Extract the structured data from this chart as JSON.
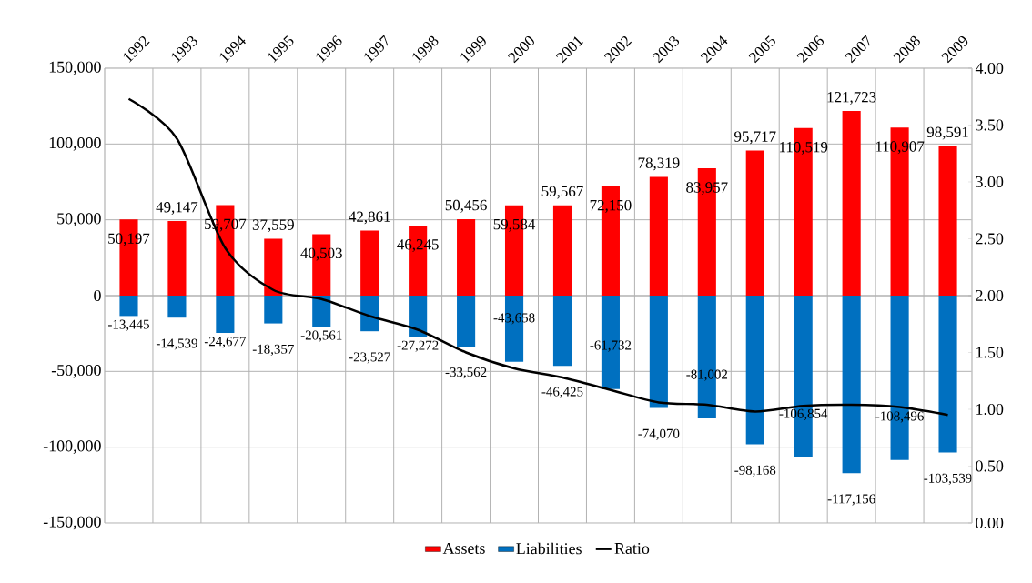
{
  "chart_data": {
    "type": "bar",
    "categories": [
      "1992",
      "1993",
      "1994",
      "1995",
      "1996",
      "1997",
      "1998",
      "1999",
      "2000",
      "2001",
      "2002",
      "2003",
      "2004",
      "2005",
      "2006",
      "2007",
      "2008",
      "2009"
    ],
    "series": [
      {
        "name": "Assets",
        "color": "#ff0000",
        "values": [
          50197,
          49147,
          59707,
          37559,
          40503,
          42861,
          46245,
          50456,
          59584,
          59567,
          72150,
          78319,
          83957,
          95717,
          110519,
          121723,
          110907,
          98591
        ],
        "value_labels": [
          "50,197",
          "49,147",
          "59,707",
          "37,559",
          "40,503",
          "42,861",
          "46,245",
          "50,456",
          "59,584",
          "59,567",
          "72,150",
          "78,319",
          "83,957",
          "95,717",
          "110,519",
          "121,723",
          "110,907",
          "98,591"
        ]
      },
      {
        "name": "Liabilities",
        "color": "#0070c0",
        "values": [
          -13445,
          -14539,
          -24677,
          -18357,
          -20561,
          -23527,
          -27272,
          -33562,
          -43658,
          -46425,
          -61732,
          -74070,
          -81002,
          -98168,
          -106854,
          -117156,
          -108496,
          -103539
        ],
        "value_labels": [
          "-13,445",
          "-14,539",
          "-24,677",
          "-18,357",
          "-20,561",
          "-23,527",
          "-27,272",
          "-33,562",
          "-43,658",
          "-46,425",
          "-61,732",
          "-74,070",
          "-81,002",
          "-98,168",
          "-106,854",
          "-117,156",
          "-108,496",
          "-103,539"
        ]
      },
      {
        "name": "Ratio",
        "type": "line",
        "axis": "y2",
        "color": "#000000",
        "values": [
          3.73,
          3.38,
          2.42,
          2.05,
          1.97,
          1.82,
          1.7,
          1.5,
          1.36,
          1.28,
          1.17,
          1.06,
          1.04,
          0.98,
          1.03,
          1.04,
          1.02,
          0.95
        ]
      }
    ],
    "ylim": [
      -150000,
      150000
    ],
    "yticks": [
      {
        "value": -150000,
        "label": "-150,000"
      },
      {
        "value": -100000,
        "label": "-100,000"
      },
      {
        "value": -50000,
        "label": "-50,000"
      },
      {
        "value": 0,
        "label": "0"
      },
      {
        "value": 50000,
        "label": "50,000"
      },
      {
        "value": 100000,
        "label": "100,000"
      },
      {
        "value": 150000,
        "label": "150,000"
      }
    ],
    "y2lim": [
      0,
      4
    ],
    "y2ticks": [
      {
        "value": 0,
        "label": "0.00"
      },
      {
        "value": 0.5,
        "label": "0.50"
      },
      {
        "value": 1,
        "label": "1.00"
      },
      {
        "value": 1.5,
        "label": "1.50"
      },
      {
        "value": 2,
        "label": "2.00"
      },
      {
        "value": 2.5,
        "label": "2.50"
      },
      {
        "value": 3,
        "label": "3.00"
      },
      {
        "value": 3.5,
        "label": "3.50"
      },
      {
        "value": 4,
        "label": "4.00"
      }
    ],
    "stacked": true,
    "grid": true,
    "legend": "bottom",
    "marker": "none",
    "line_style": "solid"
  }
}
